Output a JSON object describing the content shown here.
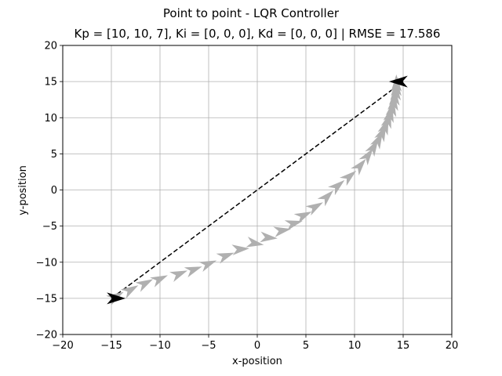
{
  "figure": {
    "suptitle": "Point to point - LQR Controller",
    "title": "Kp = [10, 10, 7], Ki = [0, 0, 0], Kd = [0, 0, 0] | RMSE = 17.586"
  },
  "colors": {
    "trail": "#b0b0b0",
    "marker": "#000000",
    "grid": "#b0b0b0",
    "reference": "#000000"
  },
  "chart_data": {
    "type": "line",
    "title": "Kp = [10, 10, 7], Ki = [0, 0, 0], Kd = [0, 0, 0] | RMSE = 17.586",
    "xlabel": "x-position",
    "ylabel": "y-position",
    "xlim": [
      -20,
      20
    ],
    "ylim": [
      -20,
      20
    ],
    "xticks": [
      -20,
      -15,
      -10,
      -5,
      0,
      5,
      10,
      15,
      20
    ],
    "yticks": [
      -20,
      -15,
      -10,
      -5,
      0,
      5,
      10,
      15,
      20
    ],
    "xtick_labels": [
      "−20",
      "−15",
      "−10",
      "−5",
      "0",
      "5",
      "10",
      "15",
      "20"
    ],
    "ytick_labels": [
      "−20",
      "−15",
      "−10",
      "−5",
      "0",
      "5",
      "10",
      "15",
      "20"
    ],
    "grid": true,
    "series": [
      {
        "name": "reference path",
        "style": "dashed",
        "x": [
          -15,
          15
        ],
        "y": [
          -15,
          15
        ]
      },
      {
        "name": "robot trajectory (heading arrows)",
        "style": "markers",
        "x": [
          -14.5,
          -13,
          -11.5,
          -10,
          -8,
          -6.5,
          -5,
          -3.2,
          -1.7,
          -0.2,
          1.2,
          2.6,
          3.8,
          4.8,
          6,
          7.2,
          8.3,
          9.5,
          10.6,
          11.4,
          12,
          12.5,
          12.9,
          13.2,
          13.5,
          13.7,
          13.9,
          14.05,
          14.15,
          14.25,
          14.3,
          14.3
        ],
        "y": [
          -14.7,
          -13.8,
          -12.9,
          -12.3,
          -11.6,
          -11,
          -10.2,
          -9.1,
          -8.2,
          -7.4,
          -6.6,
          -5.6,
          -4.6,
          -3.5,
          -2.3,
          -0.9,
          0.6,
          1.9,
          3.4,
          4.8,
          6.0,
          7.0,
          8.0,
          8.9,
          9.8,
          10.6,
          11.4,
          12.2,
          12.9,
          13.6,
          14.2,
          14.8
        ],
        "heading_deg": [
          30,
          30,
          28,
          25,
          22,
          20,
          22,
          20,
          5,
          -10,
          -5,
          10,
          15,
          25,
          30,
          45,
          40,
          40,
          50,
          55,
          60,
          63,
          66,
          70,
          73,
          76,
          80,
          83,
          86,
          88,
          89,
          90
        ]
      },
      {
        "name": "start pose",
        "style": "marker",
        "x": [
          -14.5
        ],
        "y": [
          -15
        ],
        "heading_deg": [
          0
        ]
      },
      {
        "name": "goal pose",
        "style": "marker",
        "x": [
          14.5
        ],
        "y": [
          15
        ],
        "heading_deg": [
          180
        ]
      }
    ]
  }
}
